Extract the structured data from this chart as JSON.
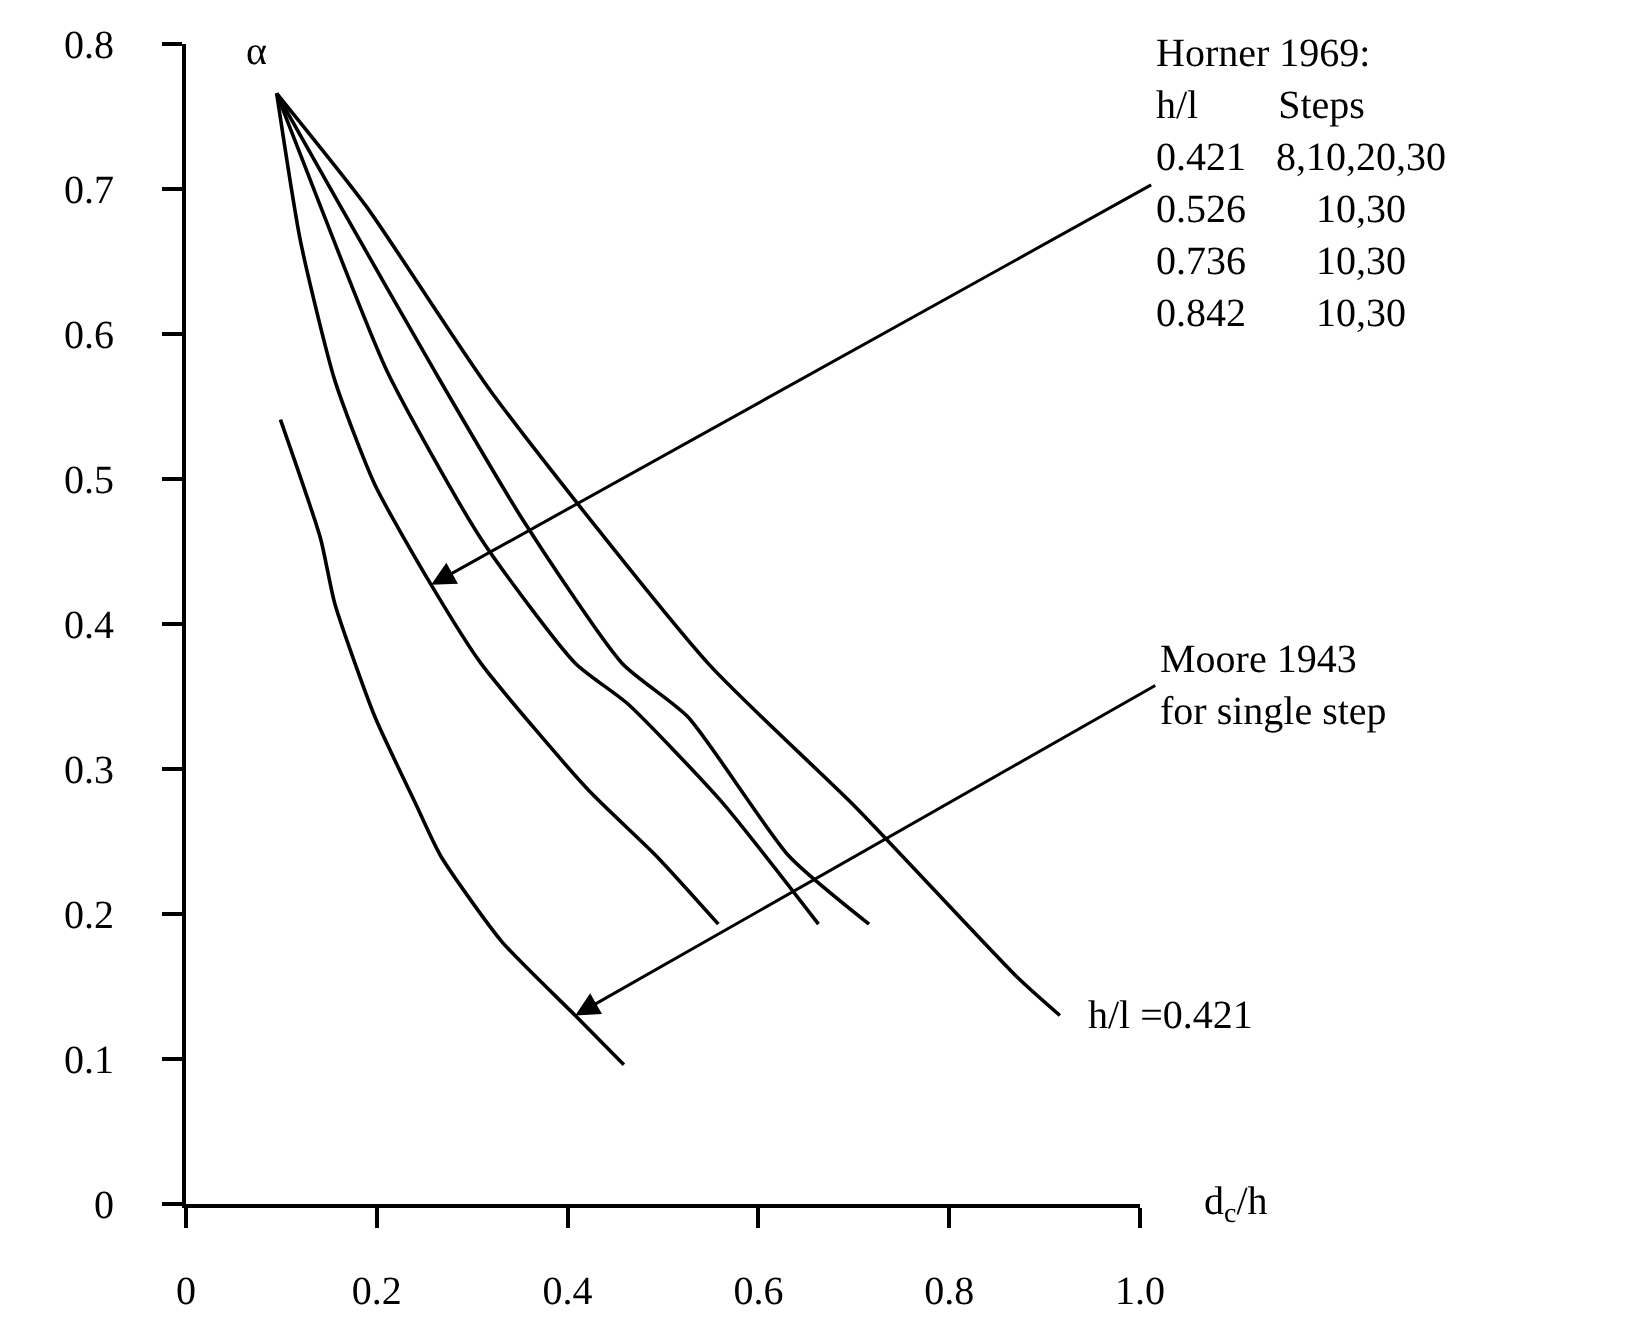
{
  "chart_data": {
    "type": "line",
    "xlabel": "d$_{c}$/h",
    "ylabel": "α",
    "xlim": [
      0,
      1.0
    ],
    "ylim": [
      0,
      0.8
    ],
    "xticks": [
      0,
      0.2,
      0.4,
      0.6,
      0.8,
      {
        "value": 1.0,
        "label": "1.0"
      }
    ],
    "yticks": [
      0,
      0.1,
      0.2,
      0.3,
      0.4,
      0.5,
      0.6,
      0.7,
      0.8
    ],
    "legend": false,
    "marker": "none",
    "line_style": "solid",
    "series": [
      {
        "color": "#000000",
        "x": [
          0.099,
          0.141,
          0.156,
          0.198,
          0.24,
          0.267,
          0.331,
          0.408,
          0.459
        ],
        "values": [
          0.541,
          0.459,
          0.414,
          0.336,
          0.277,
          0.24,
          0.181,
          0.13,
          0.096
        ]
      },
      {
        "color": "#000000",
        "x": [
          0.095,
          0.12,
          0.156,
          0.198,
          0.257,
          0.309,
          0.421,
          0.493,
          0.558
        ],
        "values": [
          0.766,
          0.664,
          0.568,
          0.496,
          0.427,
          0.373,
          0.286,
          0.24,
          0.193
        ]
      },
      {
        "color": "#000000",
        "x": [
          0.095,
          0.141,
          0.211,
          0.309,
          0.408,
          0.463,
          0.562,
          0.663
        ],
        "values": [
          0.766,
          0.688,
          0.574,
          0.459,
          0.373,
          0.345,
          0.277,
          0.193
        ]
      },
      {
        "color": "#000000",
        "x": [
          0.095,
          0.162,
          0.261,
          0.352,
          0.457,
          0.526,
          0.632,
          0.716
        ],
        "values": [
          0.766,
          0.688,
          0.574,
          0.473,
          0.373,
          0.336,
          0.24,
          0.193
        ]
      },
      {
        "color": "#000000",
        "x": [
          0.095,
          0.189,
          0.32,
          0.547,
          0.703,
          0.872,
          0.916
        ],
        "values": [
          0.766,
          0.688,
          0.56,
          0.373,
          0.273,
          0.156,
          0.13
        ]
      }
    ],
    "annotations": [
      {
        "text": "Horner 1969:\nh/l        Steps\n0.421   8,10,20,30\n0.526       10,30\n0.736       10,30\n0.842       10,30",
        "x": 0.257,
        "y": 0.427
      },
      {
        "text": "Moore 1943\nfor single step",
        "x": 0.408,
        "y": 0.13
      },
      {
        "text": "h/l =0.421",
        "x": 0.916,
        "y": 0.13
      }
    ]
  }
}
